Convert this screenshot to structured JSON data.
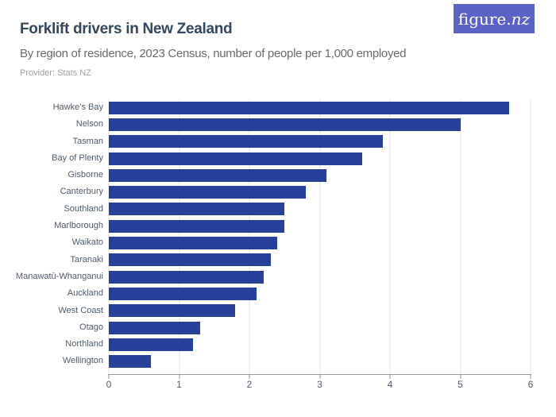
{
  "header": {
    "title": "Forklift drivers in New Zealand",
    "subtitle": "By region of residence, 2023 Census, number of people per 1,000 employed",
    "provider": "Provider: Stats NZ",
    "logo_text_regular": "figure.",
    "logo_text_italic": "nz"
  },
  "colors": {
    "bar": "#27409a",
    "logo_background": "#5b62c6",
    "title_text": "#33485c",
    "subtitle_text": "#6a6a6a",
    "provider_text": "#9e9e9e",
    "grid_line": "#e0e0e0",
    "axis_line": "#999999",
    "category_label_text": "#4c5c6b",
    "tick_label_text": "#4c5c6b"
  },
  "chart_data": {
    "type": "bar",
    "orientation": "horizontal",
    "title": "Forklift drivers in New Zealand",
    "subtitle": "By region of residence, 2023 Census, number of people per 1,000 employed",
    "source": "Provider: Stats NZ",
    "categories": [
      "Hawke’s Bay",
      "Nelson",
      "Tasman",
      "Bay of Plenty",
      "Gisborne",
      "Canterbury",
      "Southland",
      "Marlborough",
      "Waikato",
      "Taranaki",
      "Manawatū-Whanganui",
      "Auckland",
      "West Coast",
      "Otago",
      "Northland",
      "Wellington"
    ],
    "values": [
      5.7,
      5.0,
      3.9,
      3.6,
      3.1,
      2.8,
      2.5,
      2.5,
      2.4,
      2.3,
      2.2,
      2.1,
      1.8,
      1.3,
      1.2,
      0.6
    ],
    "xlabel": "",
    "ylabel": "",
    "xlim": [
      0,
      6
    ],
    "xticks": [
      0,
      1,
      2,
      3,
      4,
      5,
      6
    ],
    "grid": "vertical",
    "legend": "none",
    "bar_color": "#27409a"
  }
}
